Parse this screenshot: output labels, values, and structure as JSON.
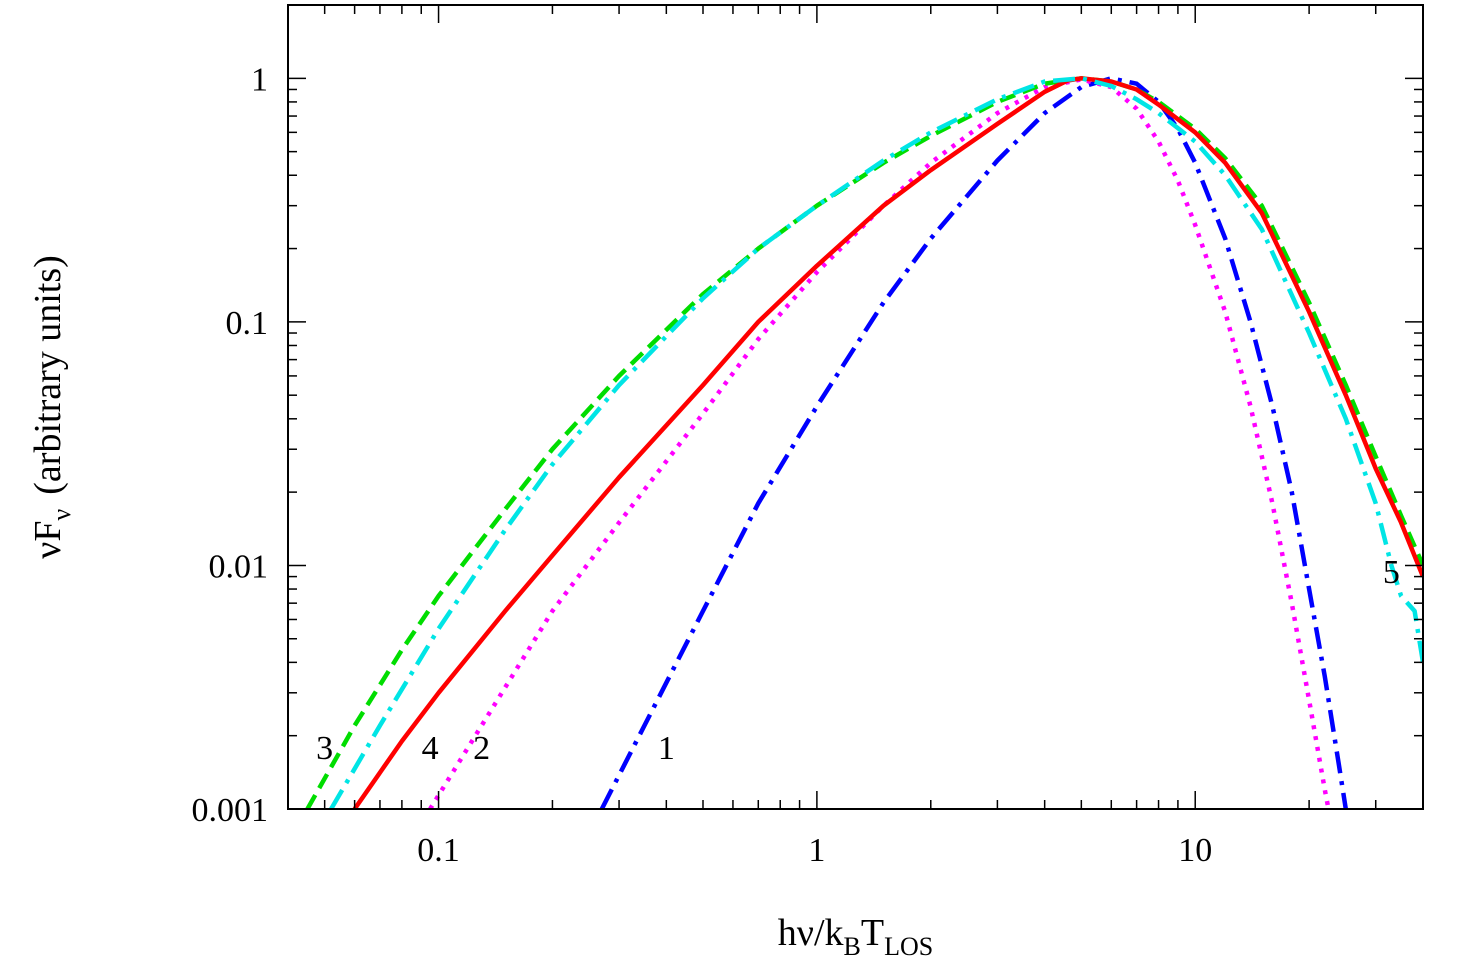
{
  "chart_data": {
    "type": "line",
    "title": "",
    "xlabel": {
      "main": "hν/k",
      "sub1": "B",
      "mid": "T",
      "sub2": "LOS"
    },
    "ylabel": {
      "main": "νF",
      "sub": "ν",
      "rest": "(arbitrary units)"
    },
    "xscale": "log",
    "yscale": "log",
    "xlim": [
      0.04,
      40
    ],
    "ylim": [
      0.001,
      2
    ],
    "x_ticks": [
      {
        "value": 0.1,
        "label": "0.1"
      },
      {
        "value": 1,
        "label": "1"
      },
      {
        "value": 10,
        "label": "10"
      }
    ],
    "y_ticks": [
      {
        "value": 0.001,
        "label": "0.001"
      },
      {
        "value": 0.01,
        "label": "0.01"
      },
      {
        "value": 0.1,
        "label": "0.1"
      },
      {
        "value": 1,
        "label": "1"
      }
    ],
    "grid": false,
    "series": [
      {
        "name": "1",
        "color": "#0000ff",
        "dash": "dashdot",
        "points": [
          [
            0.27,
            0.001
          ],
          [
            0.35,
            0.0022
          ],
          [
            0.5,
            0.0065
          ],
          [
            0.7,
            0.018
          ],
          [
            1,
            0.045
          ],
          [
            1.5,
            0.12
          ],
          [
            2,
            0.22
          ],
          [
            3,
            0.46
          ],
          [
            4,
            0.72
          ],
          [
            5,
            0.92
          ],
          [
            6,
            1.0
          ],
          [
            7,
            0.95
          ],
          [
            8,
            0.8
          ],
          [
            9,
            0.62
          ],
          [
            10,
            0.45
          ],
          [
            12,
            0.22
          ],
          [
            14,
            0.1
          ],
          [
            16,
            0.045
          ],
          [
            18,
            0.02
          ],
          [
            20,
            0.008
          ],
          [
            22,
            0.0035
          ],
          [
            24,
            0.0015
          ],
          [
            25,
            0.001
          ]
        ],
        "label_pos": [
          0.4,
          0.0018
        ]
      },
      {
        "name": "2",
        "color": "#ff00ff",
        "dash": "dotted",
        "points": [
          [
            0.095,
            0.001
          ],
          [
            0.12,
            0.0018
          ],
          [
            0.2,
            0.0065
          ],
          [
            0.3,
            0.015
          ],
          [
            0.5,
            0.042
          ],
          [
            0.7,
            0.085
          ],
          [
            1,
            0.16
          ],
          [
            1.5,
            0.3
          ],
          [
            2,
            0.45
          ],
          [
            3,
            0.72
          ],
          [
            4,
            0.92
          ],
          [
            5,
            0.99
          ],
          [
            6,
            0.92
          ],
          [
            7,
            0.75
          ],
          [
            8,
            0.55
          ],
          [
            9,
            0.38
          ],
          [
            10,
            0.25
          ],
          [
            12,
            0.11
          ],
          [
            14,
            0.045
          ],
          [
            16,
            0.018
          ],
          [
            18,
            0.007
          ],
          [
            20,
            0.0028
          ],
          [
            22,
            0.0012
          ],
          [
            22.5,
            0.001
          ]
        ],
        "label_pos": [
          0.13,
          0.0018
        ]
      },
      {
        "name": "3",
        "color": "#00dd00",
        "dash": "dashed",
        "points": [
          [
            0.045,
            0.001
          ],
          [
            0.06,
            0.0022
          ],
          [
            0.08,
            0.0045
          ],
          [
            0.1,
            0.0075
          ],
          [
            0.15,
            0.017
          ],
          [
            0.2,
            0.03
          ],
          [
            0.3,
            0.06
          ],
          [
            0.5,
            0.13
          ],
          [
            0.7,
            0.2
          ],
          [
            1,
            0.3
          ],
          [
            1.5,
            0.45
          ],
          [
            2,
            0.58
          ],
          [
            3,
            0.8
          ],
          [
            4,
            0.95
          ],
          [
            5,
            1.0
          ],
          [
            6,
            0.97
          ],
          [
            7,
            0.9
          ],
          [
            8,
            0.8
          ],
          [
            10,
            0.62
          ],
          [
            12,
            0.47
          ],
          [
            15,
            0.3
          ],
          [
            20,
            0.12
          ],
          [
            25,
            0.055
          ],
          [
            30,
            0.028
          ],
          [
            35,
            0.016
          ],
          [
            40,
            0.01
          ]
        ],
        "label_pos": [
          0.05,
          0.0018
        ]
      },
      {
        "name": "4",
        "color": "#ff0000",
        "dash": "solid",
        "points": [
          [
            0.06,
            0.001
          ],
          [
            0.08,
            0.0019
          ],
          [
            0.1,
            0.003
          ],
          [
            0.15,
            0.0065
          ],
          [
            0.2,
            0.011
          ],
          [
            0.3,
            0.023
          ],
          [
            0.5,
            0.055
          ],
          [
            0.7,
            0.1
          ],
          [
            1,
            0.17
          ],
          [
            1.5,
            0.3
          ],
          [
            2,
            0.42
          ],
          [
            3,
            0.65
          ],
          [
            4,
            0.88
          ],
          [
            4.6,
            0.98
          ],
          [
            5,
            1.0
          ],
          [
            6,
            0.97
          ],
          [
            7,
            0.9
          ],
          [
            8,
            0.78
          ],
          [
            10,
            0.6
          ],
          [
            12,
            0.45
          ],
          [
            15,
            0.28
          ],
          [
            20,
            0.11
          ],
          [
            25,
            0.05
          ],
          [
            30,
            0.025
          ],
          [
            35,
            0.015
          ],
          [
            40,
            0.009
          ]
        ],
        "label_pos": [
          0.095,
          0.0018
        ]
      },
      {
        "name": "5",
        "color": "#00e5e5",
        "dash": "dashdot",
        "points": [
          [
            0.052,
            0.001
          ],
          [
            0.07,
            0.0022
          ],
          [
            0.1,
            0.0055
          ],
          [
            0.15,
            0.014
          ],
          [
            0.2,
            0.026
          ],
          [
            0.3,
            0.055
          ],
          [
            0.5,
            0.125
          ],
          [
            0.7,
            0.2
          ],
          [
            1,
            0.3
          ],
          [
            1.5,
            0.46
          ],
          [
            2,
            0.6
          ],
          [
            3,
            0.82
          ],
          [
            4,
            0.97
          ],
          [
            5,
            1.0
          ],
          [
            6,
            0.93
          ],
          [
            7,
            0.82
          ],
          [
            8,
            0.72
          ],
          [
            10,
            0.55
          ],
          [
            12,
            0.4
          ],
          [
            15,
            0.24
          ],
          [
            20,
            0.09
          ],
          [
            25,
            0.04
          ],
          [
            30,
            0.018
          ],
          [
            33,
            0.01
          ],
          [
            35,
            0.0075
          ],
          [
            38,
            0.0065
          ],
          [
            40,
            0.004
          ]
        ],
        "label_pos": [
          33,
          0.0095
        ]
      }
    ]
  }
}
